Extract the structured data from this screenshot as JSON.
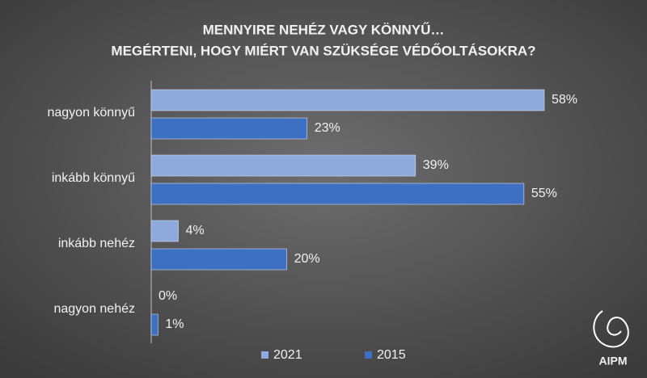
{
  "chart_data": {
    "type": "hbar",
    "title": [
      "MENNYIRE NEHÉZ VAGY KÖNNYŰ…",
      "MEGÉRTENI, HOGY MIÉRT VAN SZÜKSÉGE VÉDŐOLTÁSOKRA?"
    ],
    "categories": [
      "nagyon könnyű",
      "inkább könnyű",
      "inkább nehéz",
      "nagyon nehéz"
    ],
    "series": [
      {
        "name": "2021",
        "color": "#8eaadc",
        "values": [
          58,
          39,
          4,
          0
        ],
        "value_labels": [
          "58%",
          "39%",
          "4%",
          "0%"
        ]
      },
      {
        "name": "2015",
        "color": "#3e70c2",
        "values": [
          23,
          55,
          20,
          1
        ],
        "value_labels": [
          "23%",
          "55%",
          "20%",
          "1%"
        ]
      }
    ],
    "legend": "bottom"
  },
  "logo": "AIPM"
}
